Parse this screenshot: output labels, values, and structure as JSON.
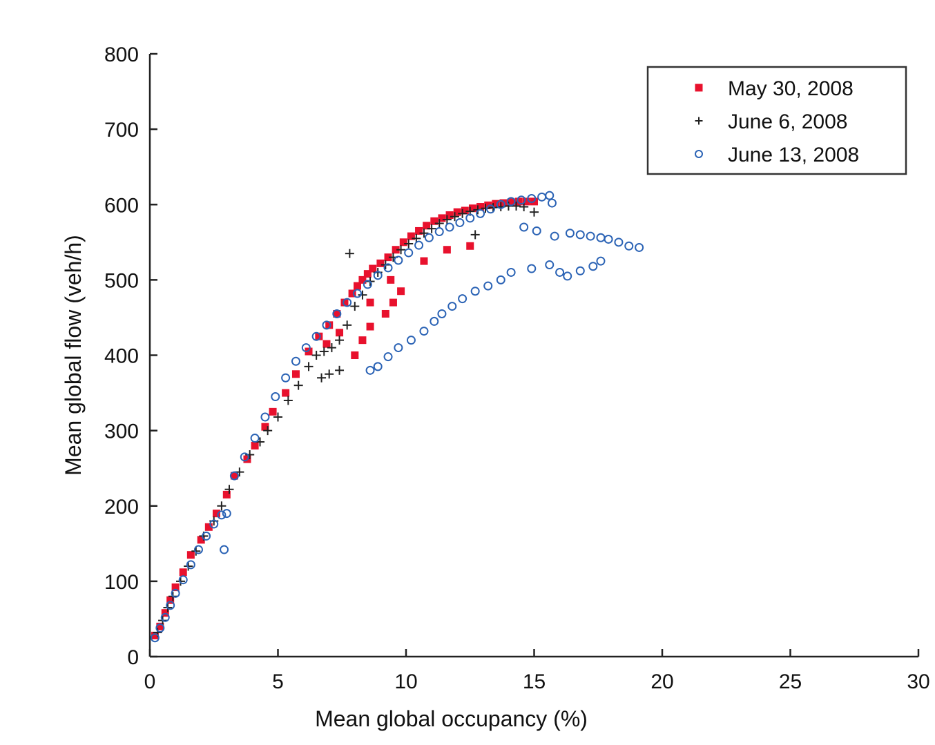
{
  "chart_data": {
    "type": "scatter",
    "title": "",
    "xlabel": "Mean global occupancy (%)",
    "ylabel": "Mean global flow (veh/h)",
    "xlim": [
      0,
      30
    ],
    "ylim": [
      0,
      800
    ],
    "xticks": [
      0,
      5,
      10,
      15,
      20,
      25,
      30
    ],
    "yticks": [
      0,
      100,
      200,
      300,
      400,
      500,
      600,
      700,
      800
    ],
    "grid": false,
    "legend_position": "top-right",
    "series": [
      {
        "name": "May 30, 2008",
        "marker": "square",
        "color": "#e8112d",
        "x": [
          0.2,
          0.4,
          0.6,
          0.8,
          1.0,
          1.3,
          1.6,
          2.0,
          2.3,
          2.6,
          3.0,
          3.3,
          3.8,
          4.1,
          4.5,
          4.8,
          5.3,
          5.7,
          6.2,
          6.6,
          7.0,
          7.3,
          7.6,
          7.9,
          8.1,
          8.3,
          8.5,
          8.7,
          9.0,
          9.3,
          9.6,
          9.9,
          10.2,
          10.5,
          10.8,
          11.1,
          11.4,
          11.7,
          12.0,
          12.3,
          12.6,
          12.9,
          13.2,
          13.5,
          13.8,
          14.1,
          14.4,
          14.7,
          15.0,
          8.0,
          8.3,
          8.6,
          9.2,
          9.5,
          9.8,
          11.6,
          12.5,
          8.6,
          9.4,
          10.7,
          6.9,
          7.4
        ],
        "y": [
          28,
          40,
          58,
          75,
          92,
          112,
          135,
          155,
          172,
          190,
          215,
          240,
          262,
          280,
          305,
          325,
          350,
          375,
          405,
          425,
          440,
          455,
          470,
          482,
          492,
          500,
          508,
          515,
          522,
          530,
          540,
          550,
          558,
          565,
          572,
          578,
          582,
          586,
          590,
          592,
          595,
          597,
          599,
          601,
          602,
          603,
          604,
          604,
          604,
          400,
          420,
          438,
          455,
          470,
          485,
          540,
          545,
          470,
          500,
          525,
          415,
          430
        ]
      },
      {
        "name": "June 6, 2008",
        "marker": "plus",
        "color": "#222222",
        "x": [
          0.3,
          0.5,
          0.7,
          0.9,
          1.2,
          1.5,
          1.8,
          2.1,
          2.5,
          2.8,
          3.1,
          3.5,
          3.9,
          4.3,
          4.6,
          5.0,
          5.4,
          5.8,
          6.2,
          6.5,
          6.8,
          7.1,
          7.4,
          7.7,
          8.0,
          8.3,
          8.6,
          8.9,
          9.2,
          9.5,
          9.8,
          10.1,
          10.4,
          10.7,
          11.0,
          11.3,
          11.6,
          11.9,
          12.2,
          12.5,
          12.8,
          13.1,
          13.4,
          13.7,
          14.0,
          14.3,
          14.6,
          15.0,
          7.8,
          7.0,
          7.4,
          6.7,
          12.7
        ],
        "y": [
          32,
          48,
          65,
          80,
          100,
          120,
          140,
          160,
          180,
          200,
          222,
          245,
          268,
          285,
          300,
          318,
          340,
          360,
          385,
          400,
          405,
          410,
          420,
          440,
          465,
          480,
          498,
          510,
          520,
          530,
          540,
          548,
          555,
          562,
          568,
          575,
          580,
          584,
          588,
          591,
          593,
          595,
          596,
          597,
          598,
          598,
          597,
          590,
          535,
          375,
          380,
          370,
          560
        ]
      },
      {
        "name": "June 13, 2008",
        "marker": "circle",
        "color": "#2b63b5",
        "x": [
          0.2,
          0.4,
          0.6,
          0.8,
          1.0,
          1.3,
          1.6,
          1.9,
          2.2,
          2.5,
          2.8,
          3.0,
          2.9,
          3.3,
          3.7,
          4.1,
          4.5,
          4.9,
          5.3,
          5.7,
          6.1,
          6.5,
          6.9,
          7.3,
          7.7,
          8.1,
          8.5,
          8.9,
          9.3,
          9.7,
          10.1,
          10.5,
          10.9,
          11.3,
          11.7,
          12.1,
          12.5,
          12.9,
          13.3,
          13.7,
          14.1,
          14.5,
          14.9,
          15.3,
          15.6,
          15.7,
          8.6,
          8.9,
          9.3,
          9.7,
          10.2,
          10.7,
          11.1,
          11.4,
          11.8,
          12.2,
          12.7,
          13.2,
          13.7,
          14.1,
          14.9,
          15.6,
          16.0,
          16.3,
          16.8,
          17.3,
          17.6,
          15.8,
          16.4,
          16.8,
          17.2,
          17.6,
          17.9,
          18.3,
          18.7,
          19.1,
          14.6,
          15.1
        ],
        "y": [
          25,
          38,
          52,
          68,
          84,
          102,
          122,
          142,
          160,
          176,
          188,
          190,
          142,
          240,
          265,
          290,
          318,
          345,
          370,
          392,
          410,
          425,
          440,
          455,
          470,
          482,
          494,
          506,
          516,
          526,
          536,
          546,
          556,
          564,
          570,
          576,
          582,
          588,
          594,
          600,
          604,
          606,
          608,
          610,
          612,
          602,
          380,
          385,
          398,
          410,
          420,
          432,
          445,
          455,
          465,
          475,
          485,
          492,
          500,
          510,
          515,
          520,
          510,
          505,
          512,
          518,
          525,
          558,
          562,
          560,
          558,
          556,
          554,
          550,
          545,
          543,
          570,
          565
        ]
      }
    ]
  }
}
